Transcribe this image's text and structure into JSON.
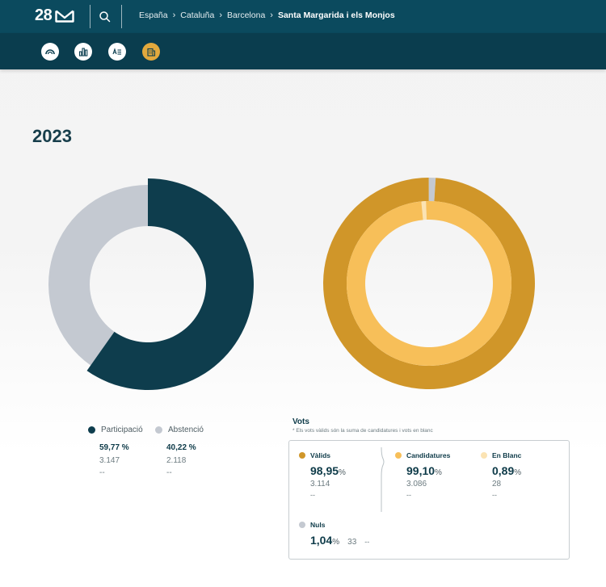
{
  "header": {
    "logo_text": "28",
    "breadcrumb": [
      "España",
      "Cataluña",
      "Barcelona"
    ],
    "breadcrumb_current": "Santa Margarida i els Monjos",
    "colors": {
      "topbar": "#0b4a5e",
      "iconbar": "#0a3d4e",
      "accent": "#e2a93d"
    }
  },
  "toolbar": {
    "icons": [
      "parliament-arc-icon",
      "bar-chart-icon",
      "candidates-list-icon",
      "municipality-building-icon"
    ],
    "active": "municipality-building-icon"
  },
  "year": "2023",
  "participation_chart": {
    "participacio_fraction": 0.5977,
    "colors": {
      "participacio": "#0e3d4d",
      "abstencio": "#c4c9d1"
    }
  },
  "votes_chart": {
    "outer_valids_fraction": 0.9895,
    "inner_candidatures_fraction": 0.991,
    "colors": {
      "valids": "#d09629",
      "candidatures": "#f7bf59",
      "blanc": "#fbe3b3",
      "nuls": "#c4c9d1"
    }
  },
  "legend": {
    "participacio": {
      "label": "Participació",
      "pct": "59,77 %",
      "count": "3.147",
      "extra": "--"
    },
    "abstencio": {
      "label": "Abstenció",
      "pct": "40,22 %",
      "count": "2.118",
      "extra": "--"
    }
  },
  "vots": {
    "title": "Vots",
    "note": "* Els vots vàlids són la suma de candidatures i vots en blanc",
    "valids": {
      "label": "Vàlids",
      "pct": "98,95",
      "unit": "%",
      "count": "3.114",
      "extra": "--"
    },
    "candidatures": {
      "label": "Candidatures",
      "pct": "99,10",
      "unit": "%",
      "count": "3.086",
      "extra": "--"
    },
    "blanc": {
      "label": "En Blanc",
      "pct": "0,89",
      "unit": "%",
      "count": "28",
      "extra": "--"
    },
    "nuls": {
      "label": "Nuls",
      "pct": "1,04",
      "unit": "%",
      "count": "33",
      "extra": "--"
    }
  }
}
